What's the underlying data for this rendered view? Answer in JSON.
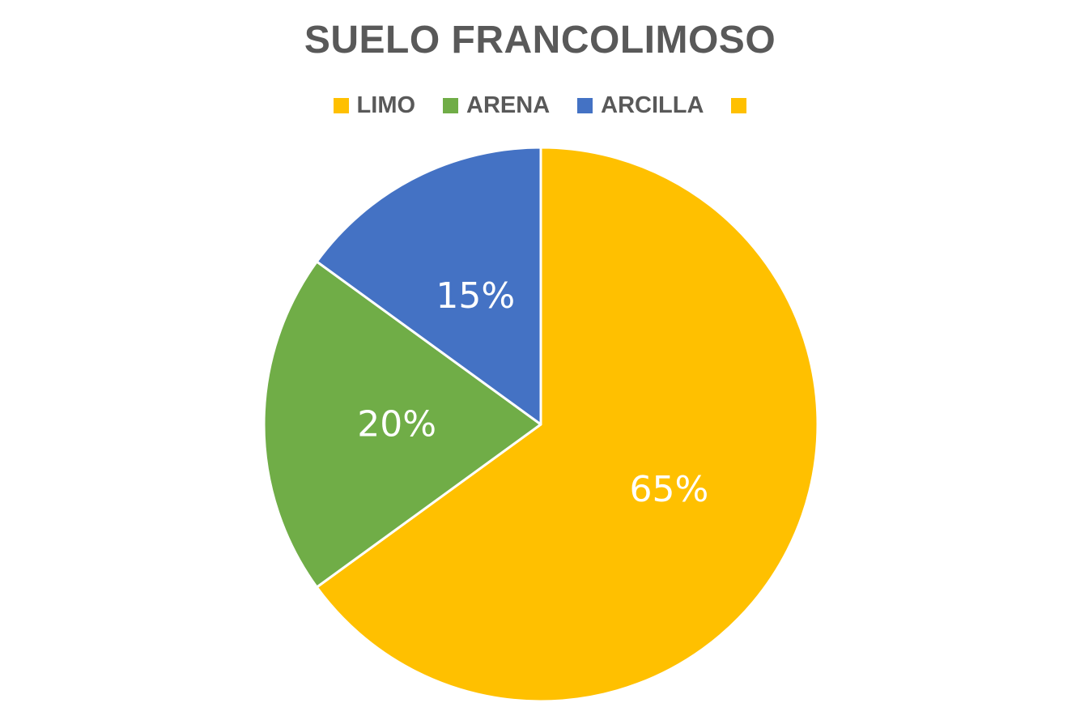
{
  "chart_data": {
    "type": "pie",
    "title": "SUELO FRANCOLIMOSO",
    "categories": [
      "LIMO",
      "ARENA",
      "ARCILLA"
    ],
    "values": [
      65,
      20,
      15
    ],
    "value_labels": [
      "65%",
      "20%",
      "15%"
    ],
    "colors": [
      "#FFC000",
      "#70AD47",
      "#4472C4"
    ],
    "legend": {
      "placement": "top",
      "entries": [
        {
          "label": "LIMO",
          "color": "#FFC000"
        },
        {
          "label": "ARENA",
          "color": "#70AD47"
        },
        {
          "label": "ARCILLA",
          "color": "#4472C4"
        },
        {
          "label": "",
          "color": "#FFC000"
        }
      ]
    },
    "slice_border_color": "#FFFFFF"
  }
}
